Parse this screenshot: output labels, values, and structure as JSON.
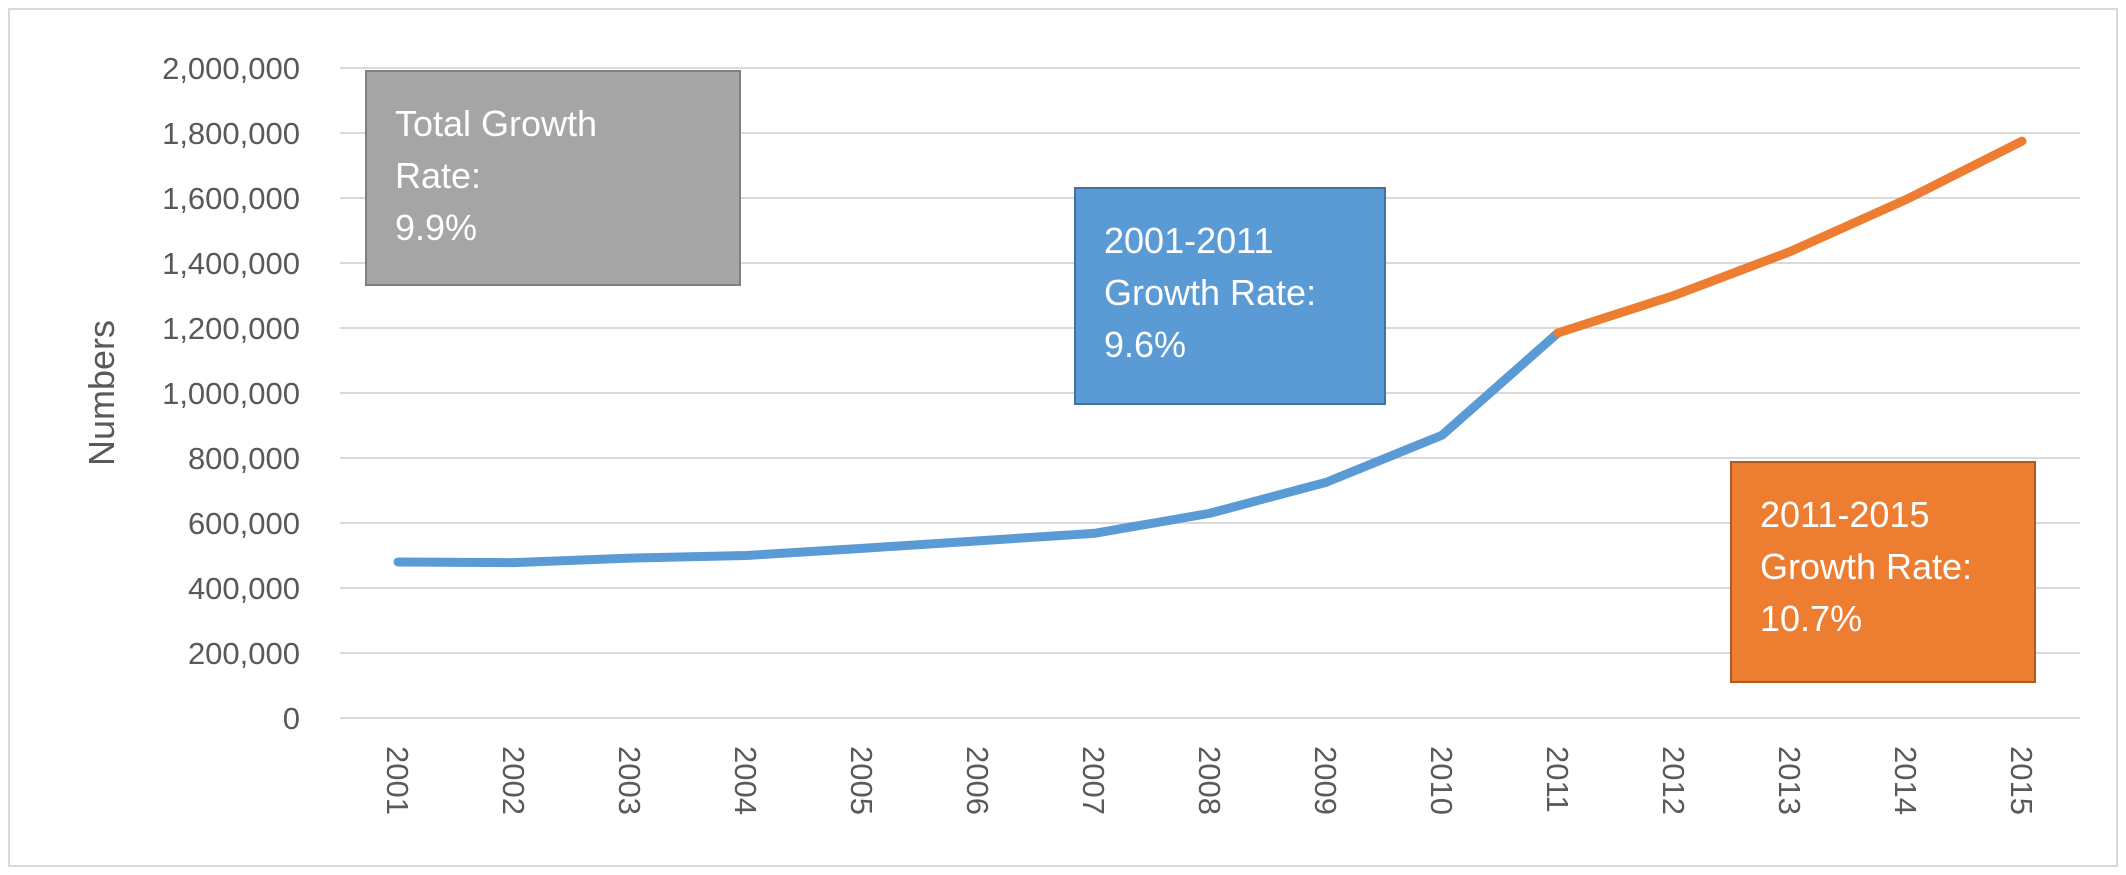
{
  "chart_data": {
    "type": "line",
    "title": "",
    "xlabel": "",
    "ylabel": "Numbers",
    "ylim": [
      0,
      2000000
    ],
    "yticks": [
      "0",
      "200,000",
      "400,000",
      "600,000",
      "800,000",
      "1,000,000",
      "1,200,000",
      "1,400,000",
      "1,600,000",
      "1,800,000",
      "2,000,000"
    ],
    "categories": [
      "2001",
      "2002",
      "2003",
      "2004",
      "2005",
      "2006",
      "2007",
      "2008",
      "2009",
      "2010",
      "2011",
      "2012",
      "2013",
      "2014",
      "2015"
    ],
    "series": [
      {
        "color": "#5b9bd5",
        "x": [
          "2001",
          "2002",
          "2003",
          "2004",
          "2005",
          "2006",
          "2007",
          "2008",
          "2009",
          "2010",
          "2011"
        ],
        "values": [
          480000,
          478000,
          492000,
          500000,
          522000,
          545000,
          568000,
          630000,
          725000,
          870000,
          1185000
        ]
      },
      {
        "color": "#ed7d31",
        "x": [
          "2011",
          "2012",
          "2013",
          "2014",
          "2015"
        ],
        "values": [
          1185000,
          1300000,
          1435000,
          1595000,
          1775000
        ]
      }
    ],
    "grid": true,
    "legend": "none",
    "annotations": [
      {
        "id": "total",
        "lines": [
          "Total Growth",
          "Rate:",
          "9.9%"
        ],
        "color": "#a5a5a5",
        "position": "top-left"
      },
      {
        "id": "first",
        "lines": [
          "2001-2011",
          "Growth Rate:",
          "9.6%"
        ],
        "color": "#5b9bd5",
        "position": "top-center"
      },
      {
        "id": "second",
        "lines": [
          "2011-2015",
          "Growth Rate:",
          "10.7%"
        ],
        "color": "#ed7d31",
        "position": "bottom-right"
      }
    ]
  }
}
